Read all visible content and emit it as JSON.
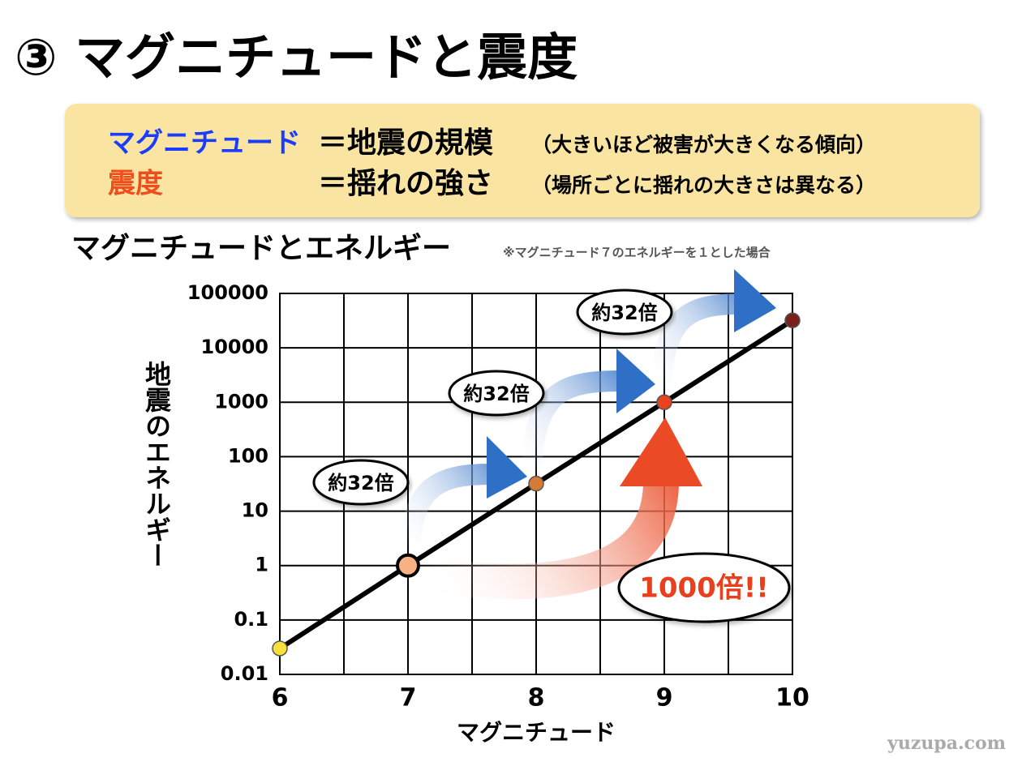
{
  "header": {
    "title": "③ マグニチュードと震度"
  },
  "definitions": [
    {
      "term": "マグニチュード",
      "meaning": "＝地震の規模",
      "note": "（大きいほど被害が大きくなる傾向）"
    },
    {
      "term": "震度",
      "meaning": "＝揺れの強さ",
      "note": "（場所ごとに揺れの大きさは異なる）"
    }
  ],
  "chart_data": {
    "type": "line",
    "title": "マグニチュードとエネルギー",
    "subtitle": "※マグニチュード７のエネルギーを１とした場合",
    "x_label": "マグニチュード",
    "y_label": "地震のエネルギー",
    "x": [
      6,
      7,
      8,
      9,
      10
    ],
    "values": [
      0.03,
      1,
      32,
      1000,
      32000
    ],
    "point_colors": [
      "#f6e03c",
      "#f8b184",
      "#d77a36",
      "#e8421f",
      "#7b211b"
    ],
    "line_color": "#000000",
    "log_y": true,
    "grid": true,
    "xlim": [
      6,
      10
    ],
    "xticks": [
      6,
      7,
      8,
      9,
      10
    ],
    "xminorticks": [
      6.5,
      7.5,
      8.5,
      9.5
    ],
    "ylim": [
      0.01,
      100000
    ],
    "yticks": [
      0.01,
      0.1,
      1,
      10,
      100,
      1000,
      10000,
      100000
    ],
    "annotations": [
      "約32倍",
      "約32倍",
      "約32倍",
      "1000倍!!"
    ]
  },
  "footer": {
    "watermark": "yuzupa.com"
  }
}
